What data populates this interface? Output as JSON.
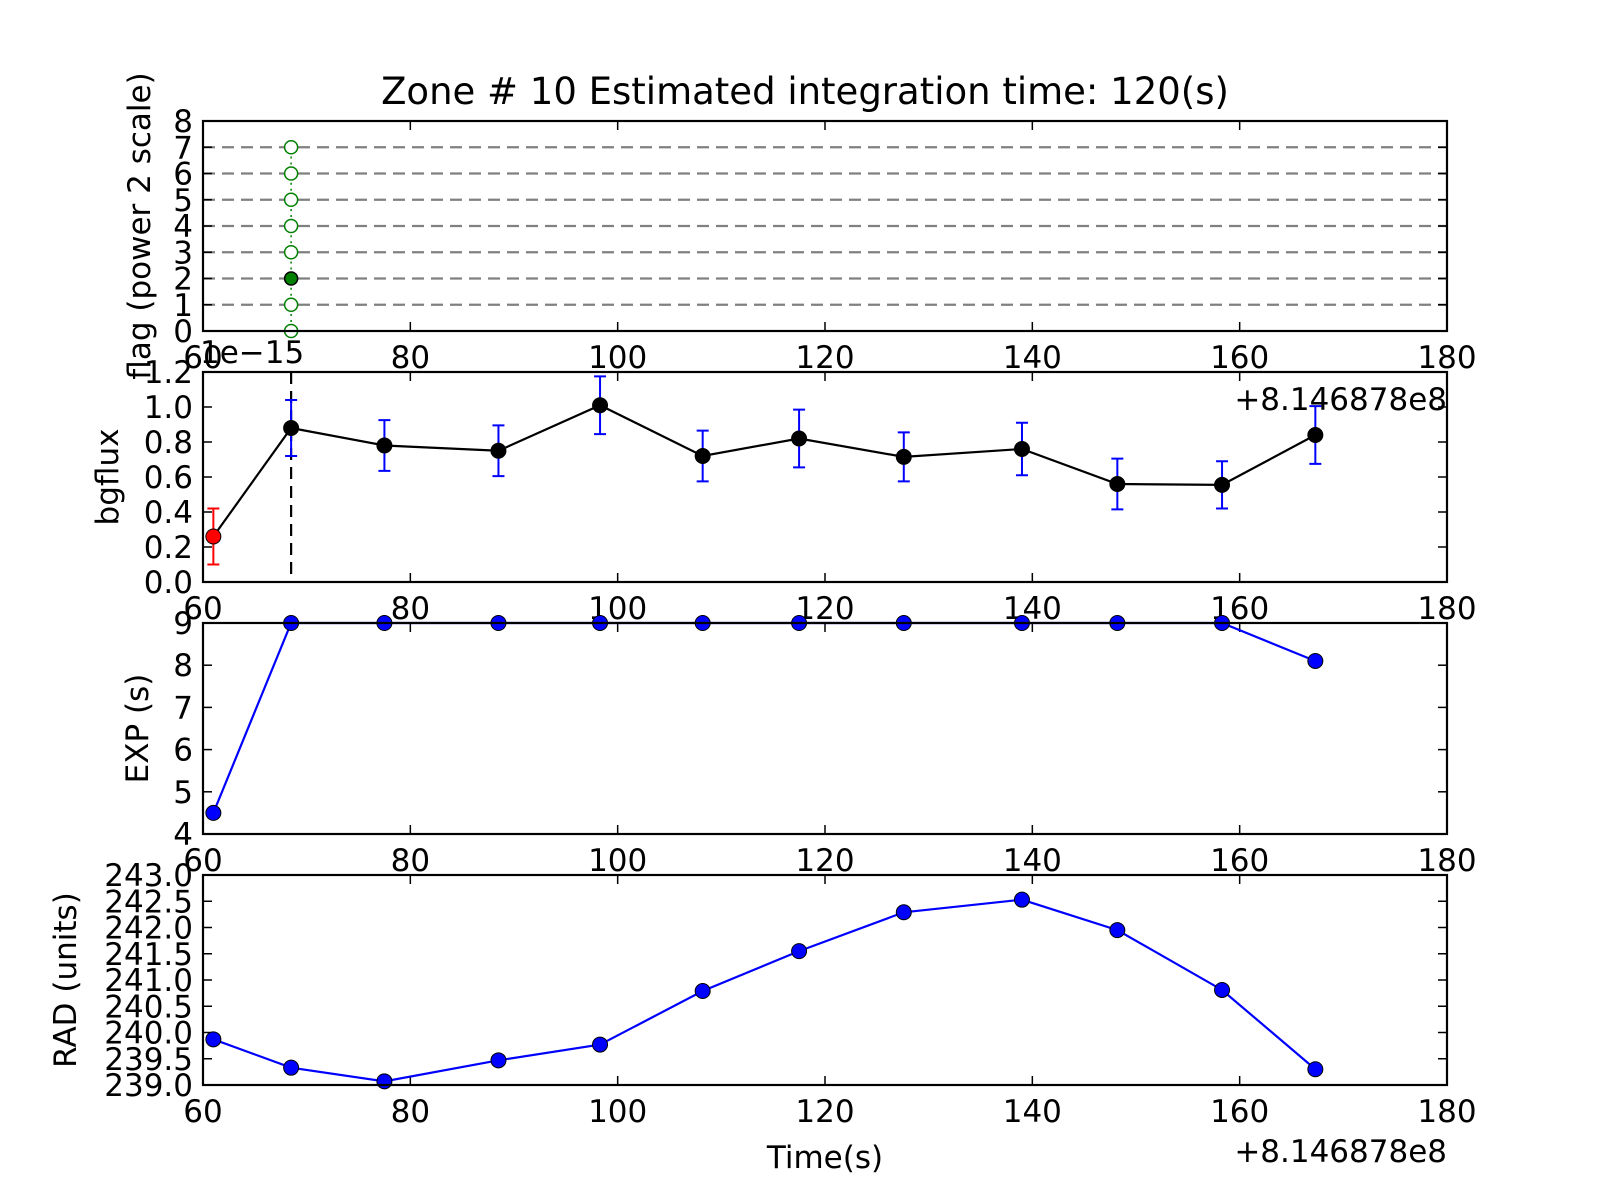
{
  "figure": {
    "title": "Zone # 10 Estimated integration time: 120(s)",
    "offset_label": "+8.146878e8",
    "flag_offset_label": "1e−15",
    "xlabel": "Time(s)"
  },
  "colors": {
    "axes": "#000000",
    "flag": "#008000",
    "bgflux_line": "#000000",
    "bgflux_err": "#0000ff",
    "bgflux_first": "#ff0000",
    "blue": "#0000ff",
    "grid_dash": "#808080"
  },
  "chart_data": [
    {
      "type": "scatter",
      "name": "flag",
      "ylabel": "flag (power 2 scale)",
      "xlim": [
        60,
        180
      ],
      "ylim": [
        0,
        8
      ],
      "xticks": [
        "60",
        "80",
        "100",
        "120",
        "140",
        "160",
        "180"
      ],
      "yticks": [
        "0",
        "1",
        "2",
        "3",
        "4",
        "5",
        "6",
        "7",
        "8"
      ],
      "hlines": [
        1,
        2,
        3,
        4,
        5,
        6,
        7
      ],
      "x": [
        68.5,
        68.5,
        68.5,
        68.5,
        68.5,
        68.5,
        68.5,
        68.5
      ],
      "y": [
        0,
        1,
        2,
        3,
        4,
        5,
        6,
        7
      ],
      "filled": [
        false,
        false,
        true,
        false,
        false,
        false,
        false,
        false
      ]
    },
    {
      "type": "line",
      "name": "bgflux",
      "ylabel": "bgflux",
      "xlim": [
        60,
        180
      ],
      "ylim": [
        0,
        1.2
      ],
      "xticks": [
        "60",
        "80",
        "100",
        "120",
        "140",
        "160",
        "180"
      ],
      "yticks": [
        "0.0",
        "0.2",
        "0.4",
        "0.6",
        "0.8",
        "1.0",
        "1.2"
      ],
      "vline_x": 68.5,
      "x": [
        61,
        68.5,
        77.5,
        88.5,
        98.3,
        108.2,
        117.5,
        127.6,
        139,
        148.2,
        158.3,
        167.3
      ],
      "y": [
        0.26,
        0.88,
        0.78,
        0.75,
        1.01,
        0.72,
        0.82,
        0.715,
        0.76,
        0.56,
        0.555,
        0.84
      ],
      "err": [
        0.16,
        0.16,
        0.145,
        0.145,
        0.165,
        0.145,
        0.165,
        0.14,
        0.15,
        0.145,
        0.135,
        0.165
      ]
    },
    {
      "type": "line",
      "name": "exp",
      "ylabel": "EXP (s)",
      "xlim": [
        60,
        180
      ],
      "ylim": [
        4,
        9
      ],
      "xticks": [
        "60",
        "80",
        "100",
        "120",
        "140",
        "160",
        "180"
      ],
      "yticks": [
        "4",
        "5",
        "6",
        "7",
        "8",
        "9"
      ],
      "x": [
        61,
        68.5,
        77.5,
        88.5,
        98.3,
        108.2,
        117.5,
        127.6,
        139,
        148.2,
        158.3,
        167.3
      ],
      "y": [
        4.5,
        9,
        9,
        9,
        9,
        9,
        9,
        9,
        9,
        9,
        9,
        8.1
      ]
    },
    {
      "type": "line",
      "name": "rad",
      "ylabel": "RAD (units)",
      "xlabel": "Time(s)",
      "xlim": [
        60,
        180
      ],
      "ylim": [
        239.0,
        243.0
      ],
      "xticks": [
        "60",
        "80",
        "100",
        "120",
        "140",
        "160",
        "180"
      ],
      "yticks": [
        "239.0",
        "239.5",
        "240.0",
        "240.5",
        "241.0",
        "241.5",
        "242.0",
        "242.5",
        "243.0"
      ],
      "x": [
        61,
        68.5,
        77.5,
        88.5,
        98.3,
        108.2,
        117.5,
        127.6,
        139,
        148.2,
        158.3,
        167.3
      ],
      "y": [
        239.87,
        239.33,
        239.07,
        239.47,
        239.77,
        240.79,
        241.55,
        242.29,
        242.53,
        241.95,
        240.81,
        239.3
      ]
    }
  ]
}
